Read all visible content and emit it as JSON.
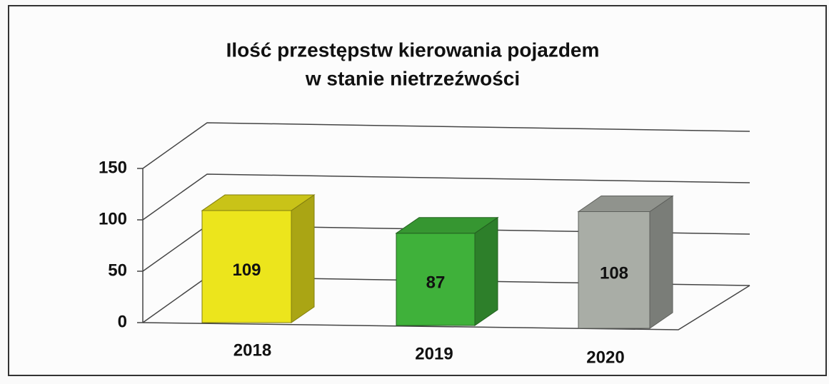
{
  "chart_data": {
    "type": "bar3d",
    "title": [
      "Ilość przestępstw kierowania pojazdem",
      "w stanie nietrzeźwości"
    ],
    "categories": [
      "2018",
      "2019",
      "2020"
    ],
    "values": [
      109,
      87,
      108
    ],
    "colors": [
      "#ece51c",
      "#3fb13a",
      "#a9ada6"
    ],
    "ylim": [
      0,
      150
    ],
    "yticks": [
      0,
      50,
      100,
      150
    ],
    "grid": true
  }
}
